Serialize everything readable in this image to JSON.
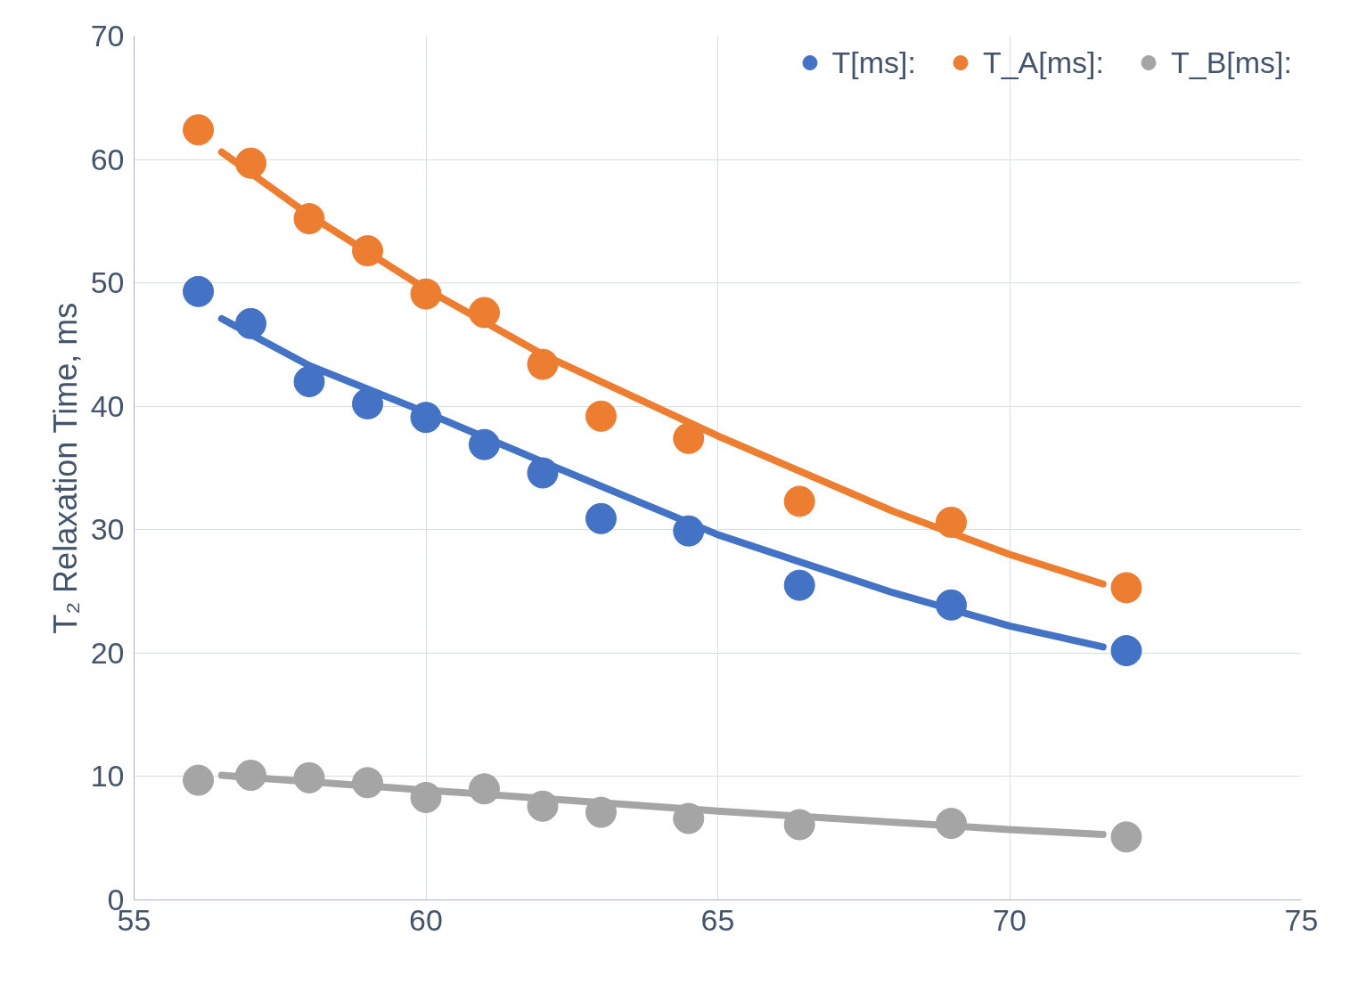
{
  "chart_data": {
    "type": "scatter",
    "ylabel": "T₂ Relaxation Time, ms",
    "x": [
      56.1,
      57.0,
      58.0,
      59.0,
      60.0,
      61.0,
      62.0,
      63.0,
      64.5,
      66.4,
      69.0,
      72.0
    ],
    "series": [
      {
        "name": "T[ms]:",
        "color": "#4472c4",
        "values": [
          49.3,
          46.7,
          42.0,
          40.2,
          39.1,
          36.9,
          34.6,
          30.9,
          29.9,
          25.5,
          23.9,
          20.2
        ]
      },
      {
        "name": "T_A[ms]:",
        "color": "#ed7d31",
        "values": [
          62.4,
          59.7,
          55.2,
          52.6,
          49.1,
          47.6,
          43.4,
          39.2,
          37.4,
          32.3,
          30.6,
          25.3
        ]
      },
      {
        "name": "T_B[ms]:",
        "color": "#a5a5a5",
        "values": [
          9.7,
          10.1,
          9.9,
          9.5,
          8.3,
          9.0,
          7.6,
          7.1,
          6.6,
          6.1,
          6.2,
          5.1
        ]
      },
      {
        "type": "line",
        "marker": "none",
        "color": "#4472c4",
        "x": [
          56.5,
          58,
          60,
          62,
          65,
          68,
          70,
          71.6
        ],
        "values": [
          47.1,
          43.3,
          39.5,
          35.5,
          29.6,
          24.9,
          22.2,
          20.5
        ]
      },
      {
        "type": "line",
        "marker": "none",
        "color": "#ed7d31",
        "x": [
          56.5,
          58,
          60,
          62,
          65,
          68,
          70,
          71.6
        ],
        "values": [
          60.6,
          55.5,
          49.5,
          44.2,
          37.6,
          31.5,
          28.0,
          25.6
        ]
      },
      {
        "type": "line",
        "marker": "none",
        "color": "#a5a5a5",
        "x": [
          56.5,
          60,
          65,
          70,
          71.6
        ],
        "values": [
          10.1,
          8.9,
          7.2,
          5.7,
          5.3
        ]
      }
    ],
    "xlim": [
      55,
      75
    ],
    "xticks": [
      55,
      60,
      65,
      70,
      75
    ],
    "ylim": [
      0,
      70
    ],
    "yticks": [
      0,
      10,
      20,
      30,
      40,
      50,
      60,
      70
    ],
    "grid": true,
    "legend": "top right",
    "marker": "circle"
  }
}
